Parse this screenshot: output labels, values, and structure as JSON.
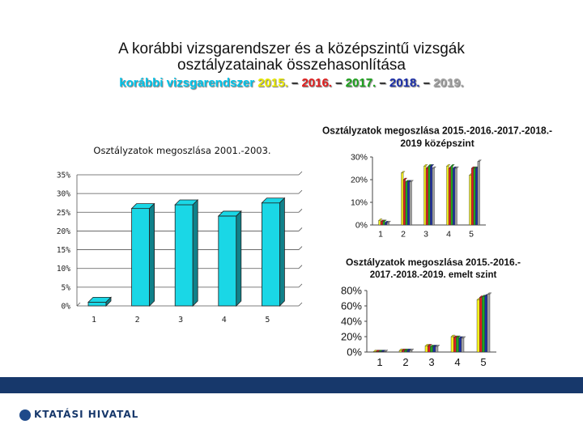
{
  "header": {
    "title_line1": "A korábbi vizsgarendszer és a középszintű vizsgák",
    "title_line2": "osztályzatainak összehasonlítása",
    "subtitle_parts": [
      {
        "text": "korábbi vizsgarendszer ",
        "color": "#00c3e8"
      },
      {
        "text": "2015.",
        "color": "#e8e800"
      },
      {
        "text": " – ",
        "color": "#111111"
      },
      {
        "text": "2016.",
        "color": "#e02020"
      },
      {
        "text": " – ",
        "color": "#111111"
      },
      {
        "text": "2017.",
        "color": "#1fa31f"
      },
      {
        "text": " – ",
        "color": "#111111"
      },
      {
        "text": "2018.",
        "color": "#1c2fa8"
      },
      {
        "text": " – ",
        "color": "#111111"
      },
      {
        "text": "2019.",
        "color": "#a0a0a0"
      }
    ]
  },
  "footer": {
    "logo_text": "KTATÁSI HIVATAL"
  },
  "chart_data": [
    {
      "id": "c1",
      "type": "bar",
      "title": "Osztályzatok megoszlása 2001.-2003.",
      "categories": [
        "1",
        "2",
        "3",
        "4",
        "5"
      ],
      "values": [
        1,
        26,
        27,
        24,
        27.5
      ],
      "ylim": [
        0,
        35
      ],
      "yticks": [
        0,
        5,
        10,
        15,
        20,
        25,
        30,
        35
      ],
      "ytick_labels": [
        "0%",
        "5%",
        "10%",
        "15%",
        "20%",
        "25%",
        "30%",
        "35%"
      ],
      "bar_color": "#1ad7e6",
      "grid": true
    },
    {
      "id": "c2",
      "type": "bar",
      "title_line1": "Osztályzatok megoszlása 2015.-2016.-2017.-2018.-",
      "title_line2": "2019 középszint",
      "categories": [
        "1",
        "2",
        "3",
        "4",
        "5"
      ],
      "series": [
        {
          "name": "2015",
          "color": "#f2ef1c",
          "values": [
            2,
            23,
            26,
            26,
            22
          ]
        },
        {
          "name": "2016",
          "color": "#e02020",
          "values": [
            1.5,
            20,
            25,
            25,
            25
          ]
        },
        {
          "name": "2017",
          "color": "#1fa31f",
          "values": [
            1.5,
            19,
            26,
            26,
            25
          ]
        },
        {
          "name": "2018",
          "color": "#1c2fa8",
          "values": [
            1,
            19,
            26,
            25,
            25
          ]
        },
        {
          "name": "2019",
          "color": "#a0a0a0",
          "values": [
            1,
            19,
            25,
            25,
            28
          ]
        }
      ],
      "ylim": [
        0,
        30
      ],
      "yticks": [
        0,
        10,
        20,
        30
      ],
      "ytick_labels": [
        "0%",
        "10%",
        "20%",
        "30%"
      ]
    },
    {
      "id": "c3",
      "type": "bar",
      "title_line1": "Osztályzatok megoszlása 2015.-2016.-",
      "title_line2": "2017.-2018.-2019. emelt szint",
      "categories": [
        "1",
        "2",
        "3",
        "4",
        "5"
      ],
      "series": [
        {
          "name": "2015",
          "color": "#f2ef1c",
          "values": [
            0.5,
            2,
            8,
            20,
            68
          ]
        },
        {
          "name": "2016",
          "color": "#e02020",
          "values": [
            0.5,
            2,
            8,
            19,
            71
          ]
        },
        {
          "name": "2017",
          "color": "#1fa31f",
          "values": [
            0.5,
            2,
            7,
            19,
            72
          ]
        },
        {
          "name": "2018",
          "color": "#1c2fa8",
          "values": [
            0.5,
            2,
            7,
            18,
            73
          ]
        },
        {
          "name": "2019",
          "color": "#a0a0a0",
          "values": [
            0.5,
            2,
            7,
            18,
            75
          ]
        }
      ],
      "ylim": [
        0,
        80
      ],
      "yticks": [
        0,
        20,
        40,
        60,
        80
      ],
      "ytick_labels": [
        "0%",
        "20%",
        "40%",
        "60%",
        "80%"
      ]
    }
  ]
}
